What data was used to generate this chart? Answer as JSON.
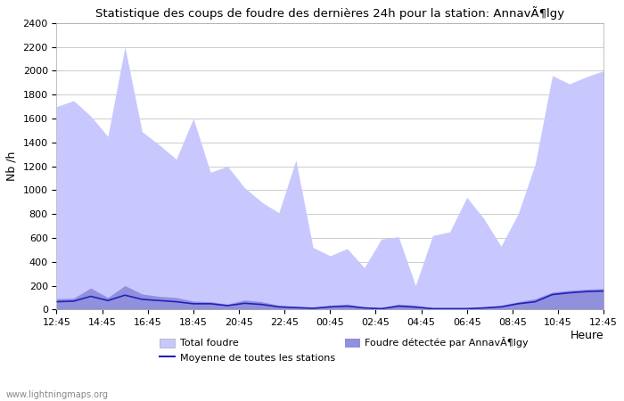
{
  "title": "Statistique des coups de foudre des dernières 24h pour la station: AnnavÃ¶lgy",
  "xlabel": "Heure",
  "ylabel": "Nb /h",
  "xlabels": [
    "12:45",
    "14:45",
    "16:45",
    "18:45",
    "20:45",
    "22:45",
    "00:45",
    "02:45",
    "04:45",
    "06:45",
    "08:45",
    "10:45",
    "12:45"
  ],
  "ylim": [
    0,
    2400
  ],
  "yticks": [
    0,
    200,
    400,
    600,
    800,
    1000,
    1200,
    1400,
    1600,
    1800,
    2000,
    2200,
    2400
  ],
  "total_foudre": [
    1700,
    1750,
    1620,
    1450,
    2200,
    1490,
    1380,
    1260,
    1600,
    1150,
    1200,
    1020,
    900,
    810,
    1250,
    520,
    450,
    510,
    350,
    590,
    610,
    200,
    620,
    650,
    940,
    760,
    530,
    800,
    1220,
    1960,
    1890,
    1950,
    2000
  ],
  "foudre_detected": [
    90,
    95,
    180,
    100,
    200,
    130,
    110,
    100,
    70,
    65,
    45,
    80,
    65,
    35,
    25,
    18,
    35,
    45,
    22,
    12,
    45,
    35,
    12,
    12,
    12,
    22,
    35,
    65,
    90,
    145,
    160,
    170,
    175
  ],
  "moyenne": [
    65,
    70,
    110,
    75,
    120,
    85,
    75,
    65,
    48,
    48,
    32,
    52,
    42,
    22,
    16,
    10,
    22,
    28,
    13,
    7,
    28,
    20,
    7,
    7,
    7,
    13,
    22,
    48,
    65,
    125,
    140,
    150,
    155
  ],
  "color_total": "#c8c8ff",
  "color_detected": "#9090dd",
  "color_moyenne": "#2222bb",
  "background_color": "#ffffff",
  "grid_color": "#cccccc",
  "watermark": "www.lightningmaps.org",
  "legend_total": "Total foudre",
  "legend_moyenne": "Moyenne de toutes les stations",
  "legend_detected": "Foudre détectée par AnnavÃ¶lgy"
}
